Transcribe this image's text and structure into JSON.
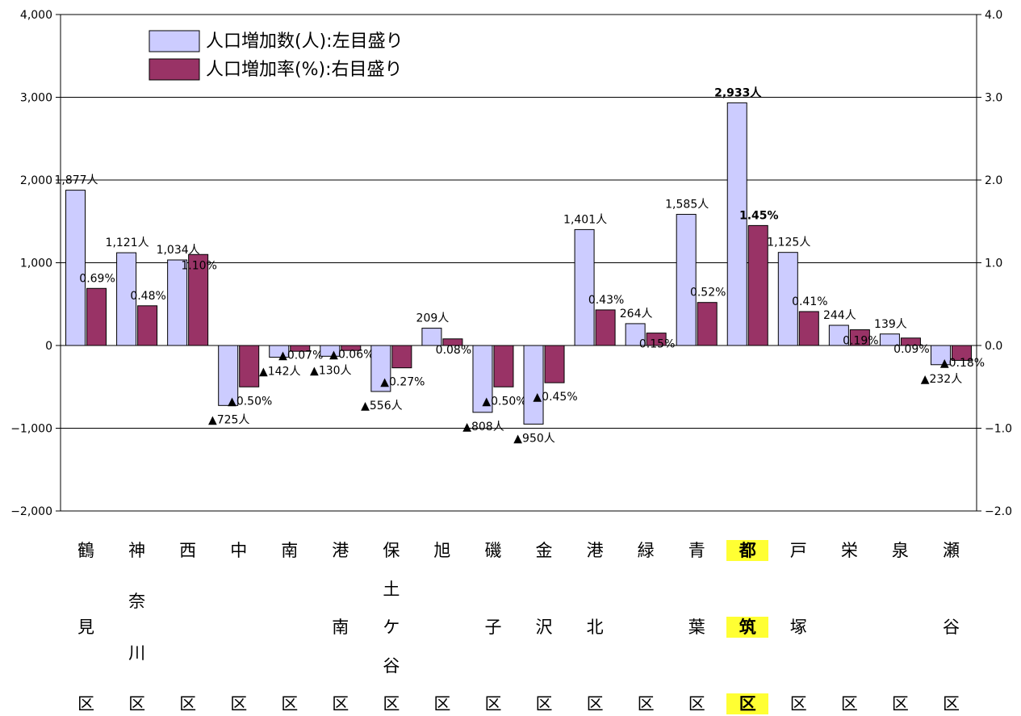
{
  "chart_data": {
    "type": "bar",
    "left_axis": {
      "ticks": [
        "4,000",
        "3,000",
        "2,000",
        "1,000",
        "0",
        "−1,000",
        "−2,000"
      ],
      "ylim": [
        -2000,
        4000
      ]
    },
    "right_axis": {
      "ticks": [
        "4.0",
        "3.0",
        "2.0",
        "1.0",
        "0.0",
        "−1.0",
        "−2.0"
      ],
      "ylim": [
        -2.0,
        4.0
      ]
    },
    "grid": true,
    "legend_position": "top-left",
    "highlight_category": 13,
    "series": [
      {
        "name": "人口増加数(人):左目盛り",
        "color": "#ccccff",
        "axis": "left",
        "values": [
          1877,
          1121,
          1034,
          -725,
          -142,
          -130,
          -556,
          209,
          -808,
          -950,
          1401,
          264,
          1585,
          2933,
          1125,
          244,
          139,
          -232
        ],
        "labels": [
          "1,877人",
          "1,121人",
          "1,034人",
          "▲725人",
          "▲142人",
          "▲130人",
          "▲556人",
          "209人",
          "▲808人",
          "▲950人",
          "1,401人",
          "264人",
          "1,585人",
          "2,933人",
          "1,125人",
          "244人",
          "139人",
          "▲232人"
        ]
      },
      {
        "name": "人口増加率(%):右目盛り",
        "color": "#993366",
        "axis": "right",
        "values": [
          0.69,
          0.48,
          1.1,
          -0.5,
          -0.07,
          -0.06,
          -0.27,
          0.08,
          -0.5,
          -0.45,
          0.43,
          0.15,
          0.52,
          1.45,
          0.41,
          0.19,
          0.09,
          -0.18
        ],
        "labels": [
          "0.69%",
          "0.48%",
          "1.10%",
          "▲0.50%",
          "▲0.07%",
          "▲0.06%",
          "▲0.27%",
          "0.08%",
          "▲0.50%",
          "▲0.45%",
          "0.43%",
          "0.15%",
          "0.52%",
          "1.45%",
          "0.41%",
          "0.19%",
          "0.09%",
          "▲0.18%"
        ]
      }
    ],
    "categories": [
      {
        "chars": [
          "鶴",
          "見",
          "区"
        ]
      },
      {
        "chars": [
          "神",
          "奈",
          "川",
          "区"
        ]
      },
      {
        "chars": [
          "西",
          "区"
        ]
      },
      {
        "chars": [
          "中",
          "区"
        ]
      },
      {
        "chars": [
          "南",
          "区"
        ]
      },
      {
        "chars": [
          "港",
          "南",
          "区"
        ]
      },
      {
        "chars": [
          "保",
          "土",
          "ケ",
          "谷",
          "区"
        ]
      },
      {
        "chars": [
          "旭",
          "区"
        ]
      },
      {
        "chars": [
          "磯",
          "子",
          "区"
        ]
      },
      {
        "chars": [
          "金",
          "沢",
          "区"
        ]
      },
      {
        "chars": [
          "港",
          "北",
          "区"
        ]
      },
      {
        "chars": [
          "緑",
          "区"
        ]
      },
      {
        "chars": [
          "青",
          "葉",
          "区"
        ]
      },
      {
        "chars": [
          "都",
          "筑",
          "区"
        ]
      },
      {
        "chars": [
          "戸",
          "塚",
          "区"
        ]
      },
      {
        "chars": [
          "栄",
          "区"
        ]
      },
      {
        "chars": [
          "泉",
          "区"
        ]
      },
      {
        "chars": [
          "瀬",
          "谷",
          "区"
        ]
      }
    ]
  }
}
